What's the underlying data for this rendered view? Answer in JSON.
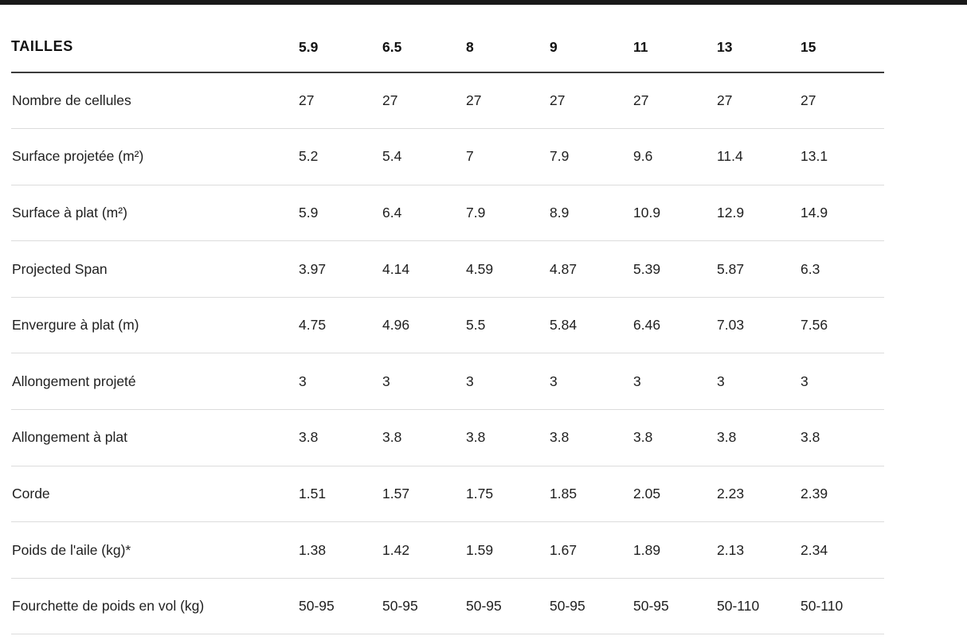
{
  "page": {
    "top_bar_color": "#191919",
    "background": "#ffffff"
  },
  "colors": {
    "text": "#1f1f1f",
    "header_text": "#111111",
    "header_rule": "#3c3c3c",
    "row_rule": "#dcdcdc"
  },
  "table": {
    "header": {
      "label": "TAILLES",
      "sizes": [
        "5.9",
        "6.5",
        "8",
        "9",
        "11",
        "13",
        "15"
      ]
    },
    "rows": [
      {
        "label": "Nombre de cellules",
        "values": [
          "27",
          "27",
          "27",
          "27",
          "27",
          "27",
          "27"
        ]
      },
      {
        "label": "Surface projetée (m²)",
        "values": [
          "5.2",
          "5.4",
          "7",
          "7.9",
          "9.6",
          "11.4",
          "13.1"
        ]
      },
      {
        "label": "Surface à plat (m²)",
        "values": [
          "5.9",
          "6.4",
          "7.9",
          "8.9",
          "10.9",
          "12.9",
          "14.9"
        ]
      },
      {
        "label": "Projected Span",
        "values": [
          "3.97",
          "4.14",
          "4.59",
          "4.87",
          "5.39",
          "5.87",
          "6.3"
        ]
      },
      {
        "label": "Envergure à plat (m)",
        "values": [
          "4.75",
          "4.96",
          "5.5",
          "5.84",
          "6.46",
          "7.03",
          "7.56"
        ]
      },
      {
        "label": "Allongement projeté",
        "values": [
          "3",
          "3",
          "3",
          "3",
          "3",
          "3",
          "3"
        ]
      },
      {
        "label": "Allongement à plat",
        "values": [
          "3.8",
          "3.8",
          "3.8",
          "3.8",
          "3.8",
          "3.8",
          "3.8"
        ]
      },
      {
        "label": "Corde",
        "values": [
          "1.51",
          "1.57",
          "1.75",
          "1.85",
          "2.05",
          "2.23",
          "2.39"
        ]
      },
      {
        "label": "Poids de l'aile (kg)*",
        "values": [
          "1.38",
          "1.42",
          "1.59",
          "1.67",
          "1.89",
          "2.13",
          "2.34"
        ]
      },
      {
        "label": "Fourchette de poids en vol (kg)",
        "values": [
          "50-95",
          "50-95",
          "50-95",
          "50-95",
          "50-95",
          "50-110",
          "50-110"
        ]
      }
    ]
  }
}
